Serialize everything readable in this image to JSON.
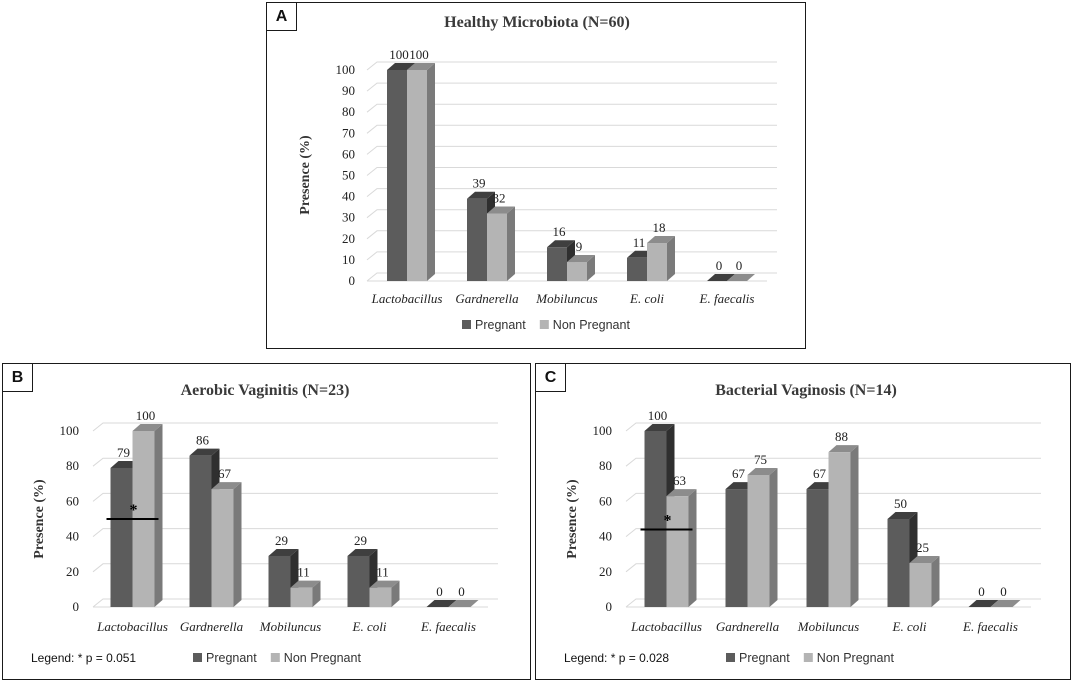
{
  "colors": {
    "pregnant": "#5c5c5c",
    "pregnant_top": "#3f3f3f",
    "pregnant_side": "#2f2f2f",
    "nonpregnant": "#b4b4b4",
    "nonpregnant_top": "#8c8c8c",
    "nonpregnant_side": "#7a7a7a",
    "grid": "#d9d9d9"
  },
  "chart_data": [
    {
      "panel": "A",
      "type": "bar",
      "title": "Healthy Microbiota (N=60)",
      "ylabel": "Presence (%)",
      "xlabel": "",
      "ylim": [
        0,
        100
      ],
      "yticks": [
        0,
        10,
        20,
        30,
        40,
        50,
        60,
        70,
        80,
        90,
        100
      ],
      "categories": [
        "Lactobacillus",
        "Gardnerella",
        "Mobiluncus",
        "E. coli",
        "E. faecalis"
      ],
      "series": [
        {
          "name": "Pregnant",
          "values": [
            100,
            39,
            16,
            11,
            0
          ]
        },
        {
          "name": "Non Pregnant",
          "values": [
            100,
            32,
            9,
            18,
            0
          ]
        }
      ],
      "legend_position": "bottom-center"
    },
    {
      "panel": "B",
      "type": "bar",
      "title": "Aerobic Vaginitis (N=23)",
      "ylabel": "Presence (%)",
      "xlabel": "",
      "ylim": [
        0,
        100
      ],
      "yticks": [
        0,
        20,
        40,
        60,
        80,
        100
      ],
      "categories": [
        "Lactobacillus",
        "Gardnerella",
        "Mobiluncus",
        "E. coli",
        "E. faecalis"
      ],
      "series": [
        {
          "name": "Pregnant",
          "values": [
            79,
            86,
            29,
            29,
            0
          ]
        },
        {
          "name": "Non Pregnant",
          "values": [
            100,
            67,
            11,
            11,
            0
          ]
        }
      ],
      "significance": {
        "category_index": 0,
        "marker": "*",
        "line_value": 50
      },
      "note": "Legend: * p = 0.051",
      "legend_position": "bottom-center"
    },
    {
      "panel": "C",
      "type": "bar",
      "title": "Bacterial Vaginosis (N=14)",
      "ylabel": "Presence (%)",
      "xlabel": "",
      "ylim": [
        0,
        100
      ],
      "yticks": [
        0,
        20,
        40,
        60,
        80,
        100
      ],
      "categories": [
        "Lactobacillus",
        "Gardnerella",
        "Mobiluncus",
        "E. coli",
        "E. faecalis"
      ],
      "series": [
        {
          "name": "Pregnant",
          "values": [
            100,
            67,
            67,
            50,
            0
          ]
        },
        {
          "name": "Non Pregnant",
          "values": [
            63,
            75,
            88,
            25,
            0
          ]
        }
      ],
      "significance": {
        "category_index": 0,
        "marker": "*",
        "line_value": 44
      },
      "note": "Legend: * p = 0.028",
      "legend_position": "bottom-center"
    }
  ]
}
